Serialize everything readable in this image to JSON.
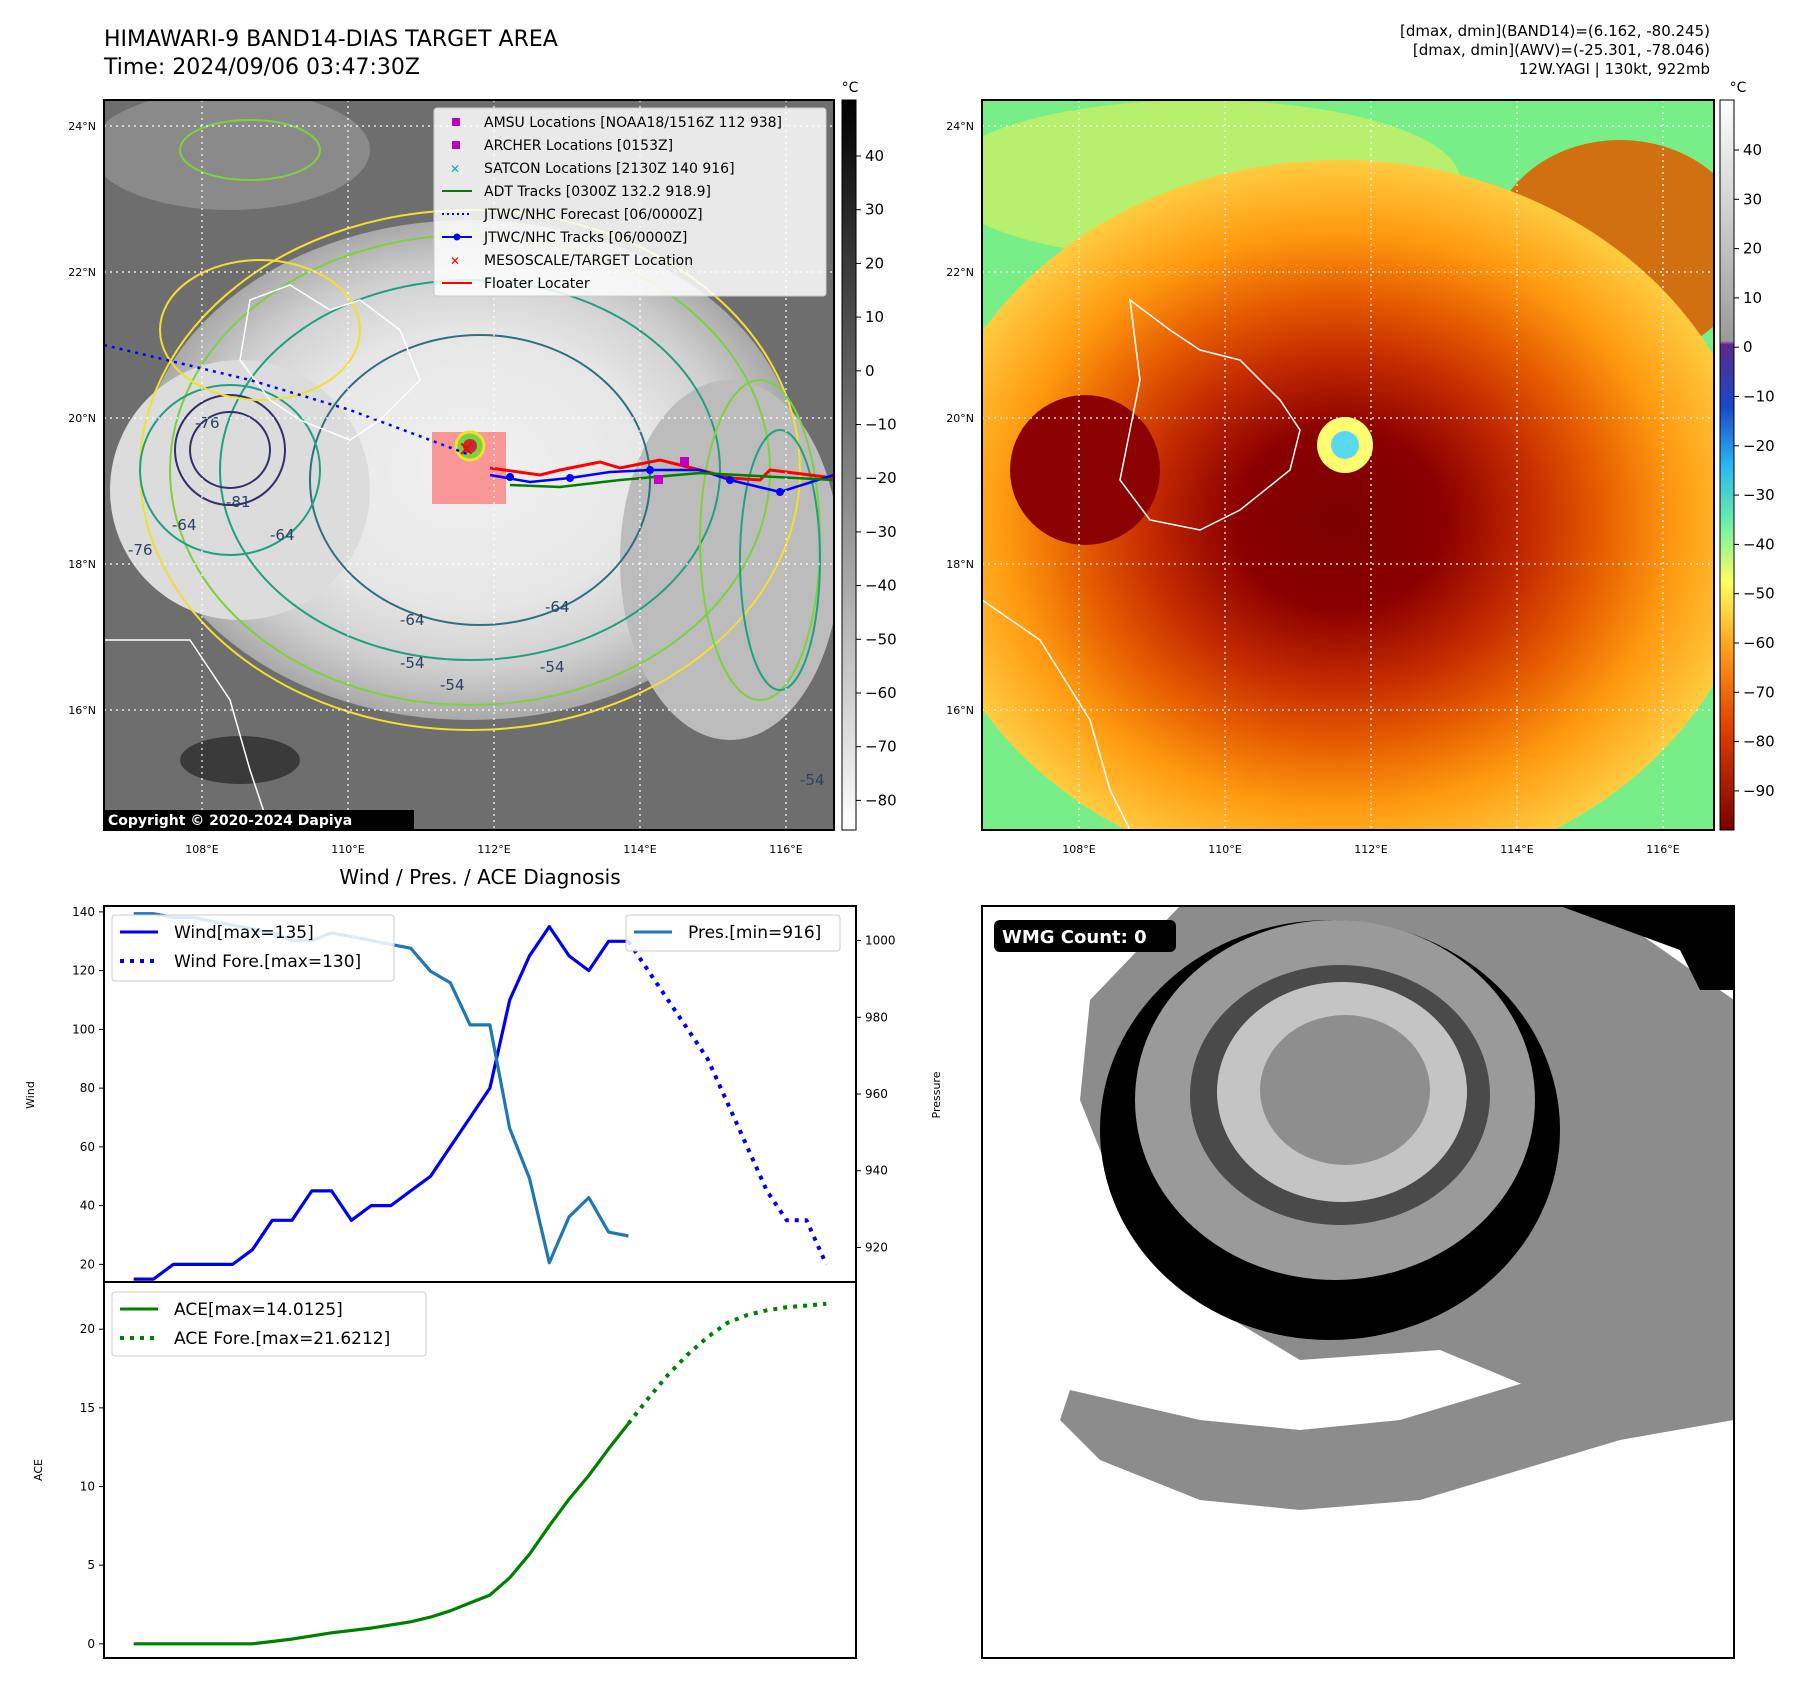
{
  "header": {
    "title_line1": "HIMAWARI-9 BAND14-DIAS TARGET AREA",
    "title_line2": "Time: 2024/09/06 03:47:30Z",
    "right_line1": "[dmax, dmin](BAND14)=(6.162, -80.245)",
    "right_line2": "[dmax, dmin](AWV)=(-25.301, -78.046)",
    "right_line3": "12W.YAGI | 130kt, 922mb"
  },
  "map_axes": {
    "lat_labels": [
      "24°N",
      "22°N",
      "20°N",
      "18°N",
      "16°N"
    ],
    "lon_labels": [
      "108°E",
      "110°E",
      "112°E",
      "114°E",
      "116°E"
    ]
  },
  "ir_panel": {
    "legend": [
      {
        "label": "AMSU Locations [NOAA18/1516Z 112 938]",
        "symbol": "square",
        "color": "#c000c0"
      },
      {
        "label": "ARCHER Locations [0153Z]",
        "symbol": "square",
        "color": "#c000c0"
      },
      {
        "label": "SATCON Locations [2130Z 140 916]",
        "symbol": "x",
        "color": "#00b0b0"
      },
      {
        "label": "ADT Tracks [0300Z 132.2 918.9]",
        "symbol": "line",
        "color": "#008000"
      },
      {
        "label": "JTWC/NHC Forecast [06/0000Z]",
        "symbol": "dotted",
        "color": "#0000ff"
      },
      {
        "label": "JTWC/NHC Tracks [06/0000Z]",
        "symbol": "line-dot",
        "color": "#0000ff"
      },
      {
        "label": "MESOSCALE/TARGET Location",
        "symbol": "x",
        "color": "#ff0000"
      },
      {
        "label": "Floater Locater",
        "symbol": "line",
        "color": "#ff0000"
      }
    ],
    "contour_labels": [
      "-64",
      "-54",
      "-76",
      "-81",
      "-64",
      "-64",
      "-54",
      "-54",
      "-54",
      "-64",
      "-76"
    ],
    "colorbar_unit": "°C",
    "colorbar_ticks": [
      "40",
      "30",
      "20",
      "10",
      "0",
      "−10",
      "−20",
      "−30",
      "−40",
      "−50",
      "−60",
      "−70",
      "−80"
    ],
    "copyright": "Copyright © 2020-2024 Dapiya"
  },
  "awv_panel": {
    "colorbar_unit": "°C",
    "colorbar_ticks": [
      "40",
      "30",
      "20",
      "10",
      "0",
      "−10",
      "−20",
      "−30",
      "−40",
      "−50",
      "−60",
      "−70",
      "−80",
      "−90"
    ]
  },
  "wmg_panel": {
    "badge": "WMG Count: 0"
  },
  "chart_data": [
    {
      "type": "line",
      "title": "Wind / Pres. / ACE Diagnosis",
      "ylabel": "Wind",
      "ylabel_right": "Pressure",
      "ylim": [
        14,
        142
      ],
      "ylim_right": [
        911,
        1009
      ],
      "yticks": [
        20,
        40,
        60,
        80,
        100,
        120,
        140
      ],
      "yticks_right": [
        920,
        940,
        960,
        980,
        1000
      ],
      "legend_left": [
        "Wind[max=135]",
        "Wind Fore.[max=130]"
      ],
      "legend_right": [
        "Pres.[min=916]"
      ],
      "series": [
        {
          "name": "Wind[max=135]",
          "axis": "left",
          "color": "#0000ee",
          "style": "solid",
          "x": [
            0,
            1,
            2,
            3,
            4,
            5,
            6,
            7,
            8,
            9,
            10,
            11,
            12,
            13,
            14,
            15,
            16,
            17,
            18,
            19,
            20,
            21,
            22,
            23,
            24,
            25
          ],
          "values": [
            15,
            15,
            20,
            20,
            20,
            20,
            25,
            35,
            35,
            45,
            45,
            35,
            40,
            40,
            45,
            50,
            60,
            70,
            80,
            110,
            125,
            135,
            125,
            120,
            130,
            130
          ]
        },
        {
          "name": "Wind Fore.[max=130]",
          "axis": "left",
          "color": "#0000ee",
          "style": "dotted",
          "x": [
            25,
            26,
            27,
            28,
            29,
            30,
            31,
            32,
            33,
            34,
            35
          ],
          "values": [
            130,
            120,
            110,
            100,
            90,
            75,
            60,
            45,
            35,
            35,
            20
          ]
        },
        {
          "name": "Pres.[min=916]",
          "axis": "right",
          "color": "#1f77b4",
          "style": "solid",
          "x": [
            0,
            1,
            2,
            3,
            4,
            5,
            6,
            7,
            8,
            9,
            10,
            11,
            12,
            13,
            14,
            15,
            16,
            17,
            18,
            19,
            20,
            21,
            22,
            23,
            24,
            25
          ],
          "values": [
            1007,
            1007,
            1006,
            1006,
            1005,
            1004,
            1003,
            1002,
            1000,
            1000,
            1002,
            1001,
            1000,
            999,
            998,
            992,
            989,
            978,
            978,
            951,
            938,
            916,
            928,
            933,
            924,
            923
          ]
        }
      ]
    },
    {
      "type": "line",
      "ylabel": "ACE",
      "ylim": [
        -0.9,
        23
      ],
      "yticks": [
        0,
        5,
        10,
        15,
        20
      ],
      "legend": [
        "ACE[max=14.0125]",
        "ACE Fore.[max=21.6212]"
      ],
      "series": [
        {
          "name": "ACE[max=14.0125]",
          "color": "#008000",
          "style": "solid",
          "x": [
            0,
            2,
            4,
            6,
            8,
            10,
            12,
            14,
            15,
            16,
            17,
            18,
            19,
            20,
            21,
            22,
            23,
            24,
            25
          ],
          "values": [
            0,
            0,
            0,
            0,
            0.3,
            0.7,
            1.0,
            1.4,
            1.7,
            2.1,
            2.6,
            3.1,
            4.2,
            5.7,
            7.5,
            9.2,
            10.7,
            12.4,
            14.0
          ]
        },
        {
          "name": "ACE Fore.[max=21.6212]",
          "color": "#008000",
          "style": "dotted",
          "x": [
            25,
            26,
            27,
            28,
            29,
            30,
            31,
            32,
            33,
            34,
            35
          ],
          "values": [
            14.0,
            15.6,
            17.1,
            18.4,
            19.5,
            20.4,
            20.9,
            21.2,
            21.4,
            21.5,
            21.62
          ]
        }
      ]
    }
  ]
}
